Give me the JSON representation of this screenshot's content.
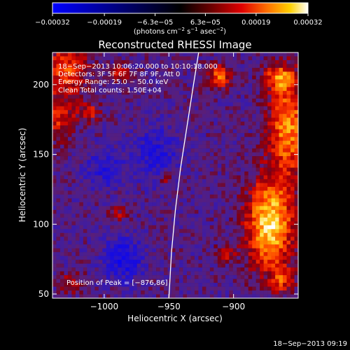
{
  "chart_data": {
    "type": "heatmap",
    "title": "Reconstructed RHESSI Image",
    "xlabel": "Heliocentric X (arcsec)",
    "ylabel": "Heliocentric Y (arcsec)",
    "xlim": [
      -1040,
      -850
    ],
    "ylim": [
      47,
      223
    ],
    "x_ticks": [
      -1000,
      -950,
      -900
    ],
    "x_tick_labels": [
      "−1000",
      "−950",
      "−900"
    ],
    "y_ticks": [
      50,
      100,
      150,
      200
    ],
    "y_tick_labels": [
      "50",
      "100",
      "150",
      "200"
    ],
    "colorbar": {
      "range": [
        -0.00032,
        0.00032
      ],
      "ticks": [
        -0.00032,
        -0.00019,
        -6.3e-05,
        6.3e-05,
        0.00019,
        0.00032
      ],
      "tick_labels": [
        "−0.00032",
        "−0.00019",
        "−6.3e−05",
        "6.3e−05",
        "0.00019",
        "0.00032"
      ],
      "units_text": "(photons cm",
      "units_exp1": "−2",
      "units_mid": " s",
      "units_exp2": "−1",
      "units_mid2": " asec",
      "units_exp3": "−2",
      "units_end": ")"
    },
    "annotations": {
      "time_range": "18−Sep−2013 10:06:20.000 to 10:10:18.000",
      "detectors": "Detectors: 3F 5F 6F 7F 8F 9F, Att 0",
      "energy": "Energy Range: 25.0 − 50.0 keV",
      "clean": "Clean    Total counts: 1.50E+04",
      "peak": "Position of Peak = [−876,86]"
    },
    "limb_curve": {
      "points": [
        [
          -950,
          47
        ],
        [
          -948,
          80
        ],
        [
          -945,
          110
        ],
        [
          -941,
          140
        ],
        [
          -936,
          170
        ],
        [
          -931,
          200
        ],
        [
          -927,
          223
        ]
      ]
    },
    "emission_regions": [
      {
        "label": "right limb main source",
        "x": -872,
        "y": 100,
        "sx": 12,
        "sy": 22,
        "amp": 1.0
      },
      {
        "label": "right limb upper source",
        "x": -858,
        "y": 170,
        "sx": 10,
        "sy": 25,
        "amp": 0.75
      },
      {
        "label": "right limb top",
        "x": -865,
        "y": 205,
        "sx": 8,
        "sy": 6,
        "amp": 0.6
      },
      {
        "label": "upper right blob",
        "x": -911,
        "y": 205,
        "sx": 6,
        "sy": 6,
        "amp": 0.65
      },
      {
        "label": "upper left corner",
        "x": -1030,
        "y": 210,
        "sx": 12,
        "sy": 14,
        "amp": 0.55
      },
      {
        "label": "left edge",
        "x": -1035,
        "y": 175,
        "sx": 8,
        "sy": 10,
        "amp": 0.45
      },
      {
        "label": "left mid",
        "x": -1012,
        "y": 180,
        "sx": 6,
        "sy": 5,
        "amp": 0.4
      },
      {
        "label": "upper center",
        "x": -988,
        "y": 208,
        "sx": 5,
        "sy": 4,
        "amp": 0.35
      },
      {
        "label": "center small",
        "x": -952,
        "y": 132,
        "sx": 5,
        "sy": 4,
        "amp": 0.3
      },
      {
        "label": "mid source",
        "x": -990,
        "y": 108,
        "sx": 5,
        "sy": 4,
        "amp": 0.3
      },
      {
        "label": "lower source",
        "x": -905,
        "y": 80,
        "sx": 5,
        "sy": 5,
        "amp": 0.35
      },
      {
        "label": "lower left",
        "x": -1025,
        "y": 58,
        "sx": 6,
        "sy": 5,
        "amp": 0.35
      },
      {
        "label": "lower right edge",
        "x": -862,
        "y": 60,
        "sx": 6,
        "sy": 6,
        "amp": 0.45
      }
    ],
    "negative_regions": [
      {
        "x": -985,
        "y": 75,
        "sx": 10,
        "sy": 10,
        "amp": 0.5
      },
      {
        "x": -960,
        "y": 150,
        "sx": 12,
        "sy": 14,
        "amp": 0.35
      },
      {
        "x": -1000,
        "y": 140,
        "sx": 10,
        "sy": 10,
        "amp": 0.3
      }
    ],
    "background_level": 0.08,
    "grid": false
  },
  "timestamp": "18−Sep−2013 09:19"
}
